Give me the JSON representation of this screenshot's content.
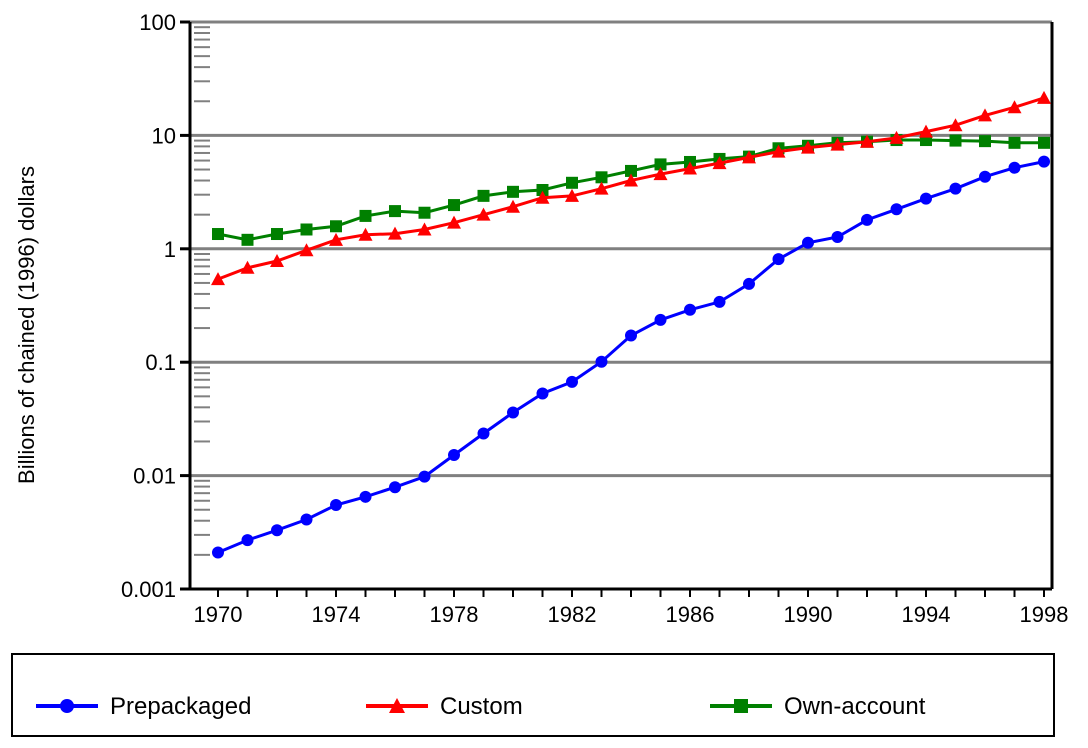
{
  "chart_data": {
    "type": "line",
    "title": "",
    "xlabel": "",
    "ylabel": "Billions of chained (1996) dollars",
    "y_scale": "log",
    "ylim": [
      0.001,
      100
    ],
    "xlim": [
      1970,
      1998
    ],
    "y_ticks": [
      0.001,
      0.01,
      0.1,
      1,
      10,
      100
    ],
    "y_tick_labels": [
      "0.001",
      "0.01",
      "0.1",
      "1",
      "10",
      "100"
    ],
    "x_ticks": [
      1970,
      1974,
      1978,
      1982,
      1986,
      1990,
      1994,
      1998
    ],
    "x_tick_labels": [
      "1970",
      "1974",
      "1978",
      "1982",
      "1986",
      "1990",
      "1994",
      "1998"
    ],
    "grid": "horizontal major gridlines",
    "legend_position": "bottom",
    "x": [
      1970,
      1971,
      1972,
      1973,
      1974,
      1975,
      1976,
      1977,
      1978,
      1979,
      1980,
      1981,
      1982,
      1983,
      1984,
      1985,
      1986,
      1987,
      1988,
      1989,
      1990,
      1991,
      1992,
      1993,
      1994,
      1995,
      1996,
      1997,
      1998
    ],
    "series": [
      {
        "name": "Prepackaged",
        "color": "#0000ff",
        "marker": "circle",
        "values": [
          0.0021,
          0.0027,
          0.0033,
          0.0041,
          0.0055,
          0.0065,
          0.0079,
          0.0098,
          0.0152,
          0.0235,
          0.036,
          0.053,
          0.067,
          0.101,
          0.172,
          0.236,
          0.29,
          0.34,
          0.49,
          0.81,
          1.13,
          1.27,
          1.8,
          2.23,
          2.77,
          3.39,
          4.32,
          5.19,
          5.87
        ]
      },
      {
        "name": "Custom",
        "color": "#ff0000",
        "marker": "triangle",
        "values": [
          0.54,
          0.68,
          0.78,
          0.97,
          1.2,
          1.33,
          1.36,
          1.48,
          1.7,
          2.0,
          2.35,
          2.82,
          2.93,
          3.39,
          4.0,
          4.56,
          5.1,
          5.7,
          6.4,
          7.2,
          7.8,
          8.3,
          8.8,
          9.5,
          10.8,
          12.3,
          15.0,
          17.7,
          21.4
        ]
      },
      {
        "name": "Own-account",
        "color": "#008000",
        "marker": "square",
        "values": [
          1.35,
          1.2,
          1.35,
          1.48,
          1.58,
          1.95,
          2.15,
          2.08,
          2.43,
          2.93,
          3.18,
          3.3,
          3.82,
          4.27,
          4.86,
          5.55,
          5.83,
          6.2,
          6.5,
          7.7,
          8.1,
          8.6,
          8.8,
          9.1,
          9.1,
          9.0,
          8.9,
          8.6,
          8.6
        ]
      }
    ]
  }
}
